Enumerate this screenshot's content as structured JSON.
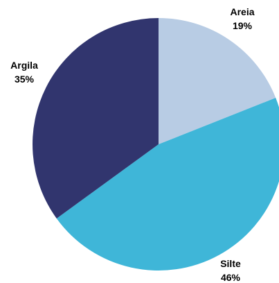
{
  "chart_data": {
    "type": "pie",
    "title": "",
    "slices": [
      {
        "label": "Areia",
        "value": 19,
        "value_label": "19%",
        "color": "#b8cce4"
      },
      {
        "label": "Silte",
        "value": 46,
        "value_label": "46%",
        "color": "#3fb6d8"
      },
      {
        "label": "Argila",
        "value": 35,
        "value_label": "35%",
        "color": "#31356e"
      }
    ],
    "start_angle": "12 o'clock",
    "direction": "clockwise",
    "legend": "none",
    "data_labels": "outside"
  }
}
